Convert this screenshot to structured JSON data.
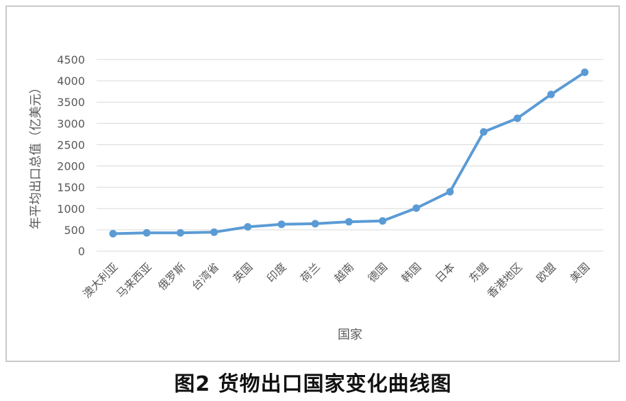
{
  "chart_data": {
    "type": "line",
    "title": "",
    "xlabel": "国家",
    "ylabel": "年平均出口总值（亿美元）",
    "ylim": [
      0,
      4500
    ],
    "yticks": [
      0,
      500,
      1000,
      1500,
      2000,
      2500,
      3000,
      3500,
      4000,
      4500
    ],
    "grid": true,
    "legend": "none",
    "categories": [
      "澳大利亚",
      "马来西亚",
      "俄罗斯",
      "台湾省",
      "英国",
      "印度",
      "荷兰",
      "越南",
      "德国",
      "韩国",
      "日本",
      "东盟",
      "香港地区",
      "欧盟",
      "美国"
    ],
    "series": [
      {
        "color": "#5b9bd5",
        "values": [
          410,
          430,
          430,
          445,
          570,
          630,
          645,
          690,
          710,
          1010,
          1395,
          2800,
          3120,
          3680,
          4200
        ]
      }
    ]
  },
  "caption": "图2  货物出口国家变化曲线图"
}
